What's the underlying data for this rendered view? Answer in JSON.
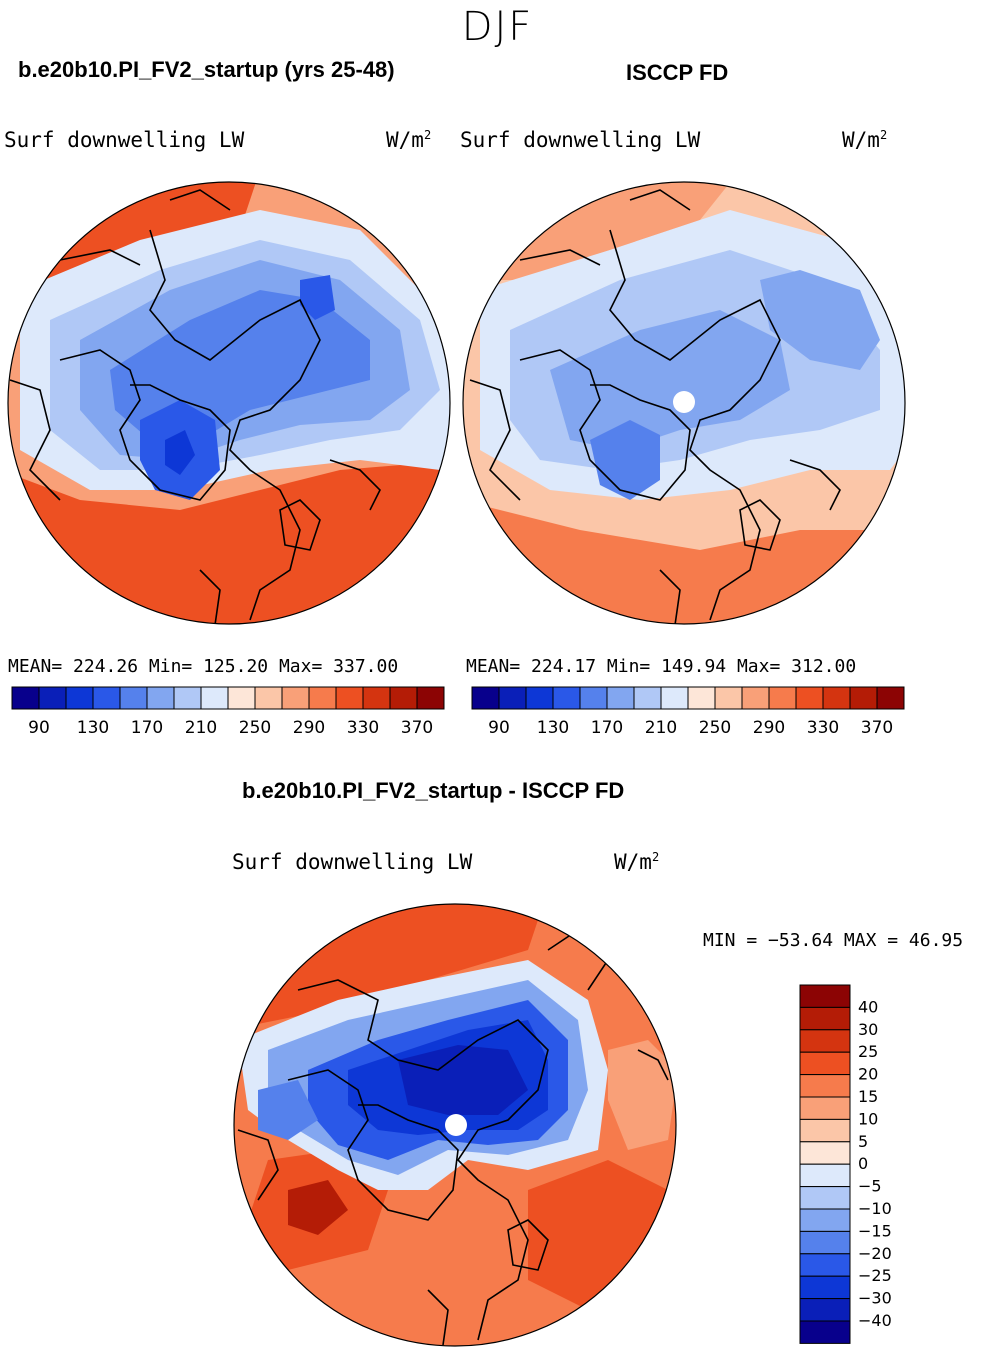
{
  "figure": {
    "season": "DJF",
    "left_panel_title": "b.e20b10.PI_FV2_startup (yrs 25-48)",
    "right_panel_title": "ISCCP FD",
    "diff_title": "b.e20b10.PI_FV2_startup - ISCCP FD"
  },
  "colors": {
    "abs_scale": [
      "#08008c",
      "#0a1fb8",
      "#0d37d6",
      "#2a58e8",
      "#5581ec",
      "#82a6f0",
      "#b0c8f6",
      "#dde9fb",
      "#fde6d8",
      "#fbc6a8",
      "#f9a078",
      "#f67b4c",
      "#ed5022",
      "#d43410",
      "#b41c06",
      "#8c0404"
    ],
    "diff_scale": [
      "#08008c",
      "#0a1fb8",
      "#0d37d6",
      "#2a58e8",
      "#5581ec",
      "#82a6f0",
      "#b0c8f6",
      "#dde9fb",
      "#fde6d8",
      "#fbc6a8",
      "#f9a078",
      "#f67b4c",
      "#ed5022",
      "#d43410",
      "#b41c06",
      "#8c0404"
    ]
  },
  "chart_data": [
    {
      "type": "heatmap",
      "title": "b.e20b10.PI_FV2_startup (yrs 25-48)",
      "variable": "Surf downwelling LW",
      "units_base": "W/m",
      "units_exp": "2",
      "mean": "224.26",
      "min": "125.20",
      "max": "337.00",
      "colorbar_levels": [
        90,
        110,
        130,
        150,
        170,
        190,
        210,
        230,
        250,
        270,
        290,
        310,
        330,
        350,
        370
      ],
      "colorbar_ticks": [
        "90",
        "130",
        "170",
        "210",
        "250",
        "290",
        "330",
        "370"
      ]
    },
    {
      "type": "heatmap",
      "title": "ISCCP FD",
      "variable": "Surf downwelling LW",
      "units_base": "W/m",
      "units_exp": "2",
      "mean": "224.17",
      "min": "149.94",
      "max": "312.00",
      "colorbar_levels": [
        90,
        110,
        130,
        150,
        170,
        190,
        210,
        230,
        250,
        270,
        290,
        310,
        330,
        350,
        370
      ],
      "colorbar_ticks": [
        "90",
        "130",
        "170",
        "210",
        "250",
        "290",
        "330",
        "370"
      ]
    },
    {
      "type": "heatmap",
      "title": "b.e20b10.PI_FV2_startup - ISCCP FD",
      "variable": "Surf downwelling LW",
      "units_base": "W/m",
      "units_exp": "2",
      "min_label": "MIN = −53.64",
      "max_label": "MAX =   46.95",
      "colorbar_levels": [
        "40",
        "30",
        "25",
        "20",
        "15",
        "10",
        "5",
        "0",
        "−5",
        "−10",
        "−15",
        "−20",
        "−25",
        "−30",
        "−40"
      ]
    }
  ]
}
